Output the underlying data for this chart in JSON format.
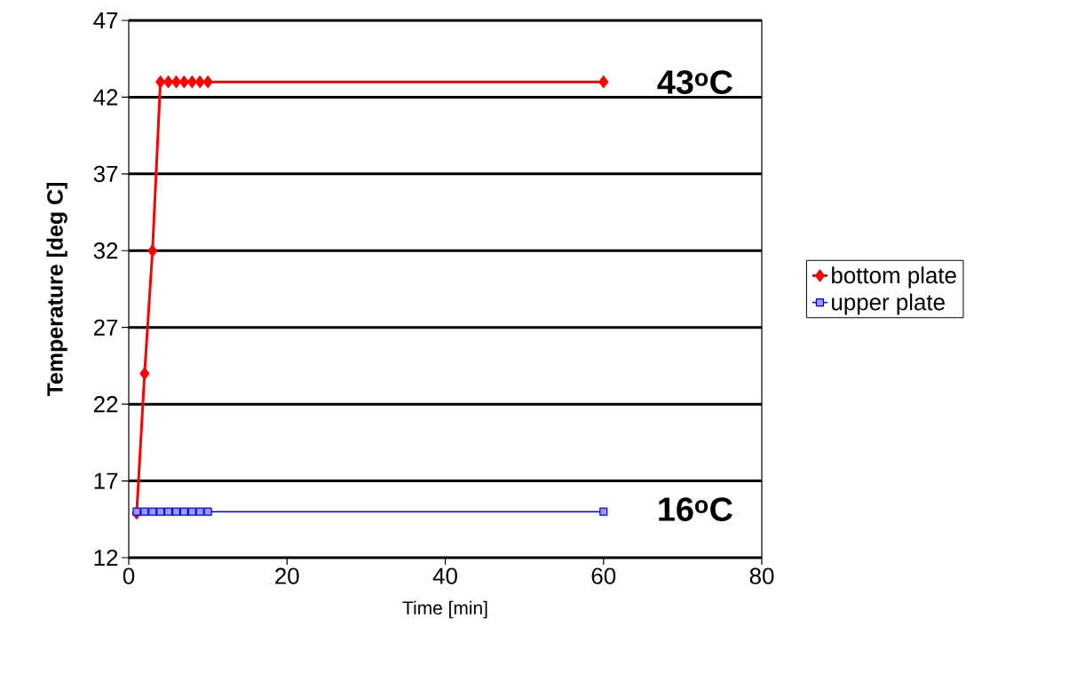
{
  "chart_data": {
    "type": "line",
    "xlabel": "Time [min]",
    "ylabel": "Temperature [deg C]",
    "xlim": [
      0,
      80
    ],
    "xticks": [
      0,
      20,
      40,
      60,
      80
    ],
    "ylim": [
      12,
      47
    ],
    "yticks": [
      12,
      17,
      22,
      27,
      32,
      37,
      42,
      47
    ],
    "grid": "y",
    "legend": "right",
    "series": [
      {
        "name": "bottom plate",
        "color": "#ff0000",
        "marker": "diamond",
        "line_style": "solid",
        "x": [
          1,
          2,
          3,
          4,
          5,
          6,
          7,
          8,
          9,
          10,
          60
        ],
        "values": [
          14.9,
          24,
          32,
          43,
          43,
          43,
          43,
          43,
          43,
          43,
          43
        ]
      },
      {
        "name": "upper plate",
        "color": "#0000ff",
        "marker": "square",
        "line_style": "solid",
        "x": [
          1,
          2,
          3,
          4,
          5,
          6,
          7,
          8,
          9,
          10,
          60
        ],
        "values": [
          15.0,
          15.0,
          15.0,
          15.0,
          15.0,
          15.0,
          15.0,
          15.0,
          15.0,
          15.0,
          15.0
        ]
      }
    ],
    "annotations": [
      "43$^{o}$C",
      "16$^{o}$C"
    ]
  }
}
